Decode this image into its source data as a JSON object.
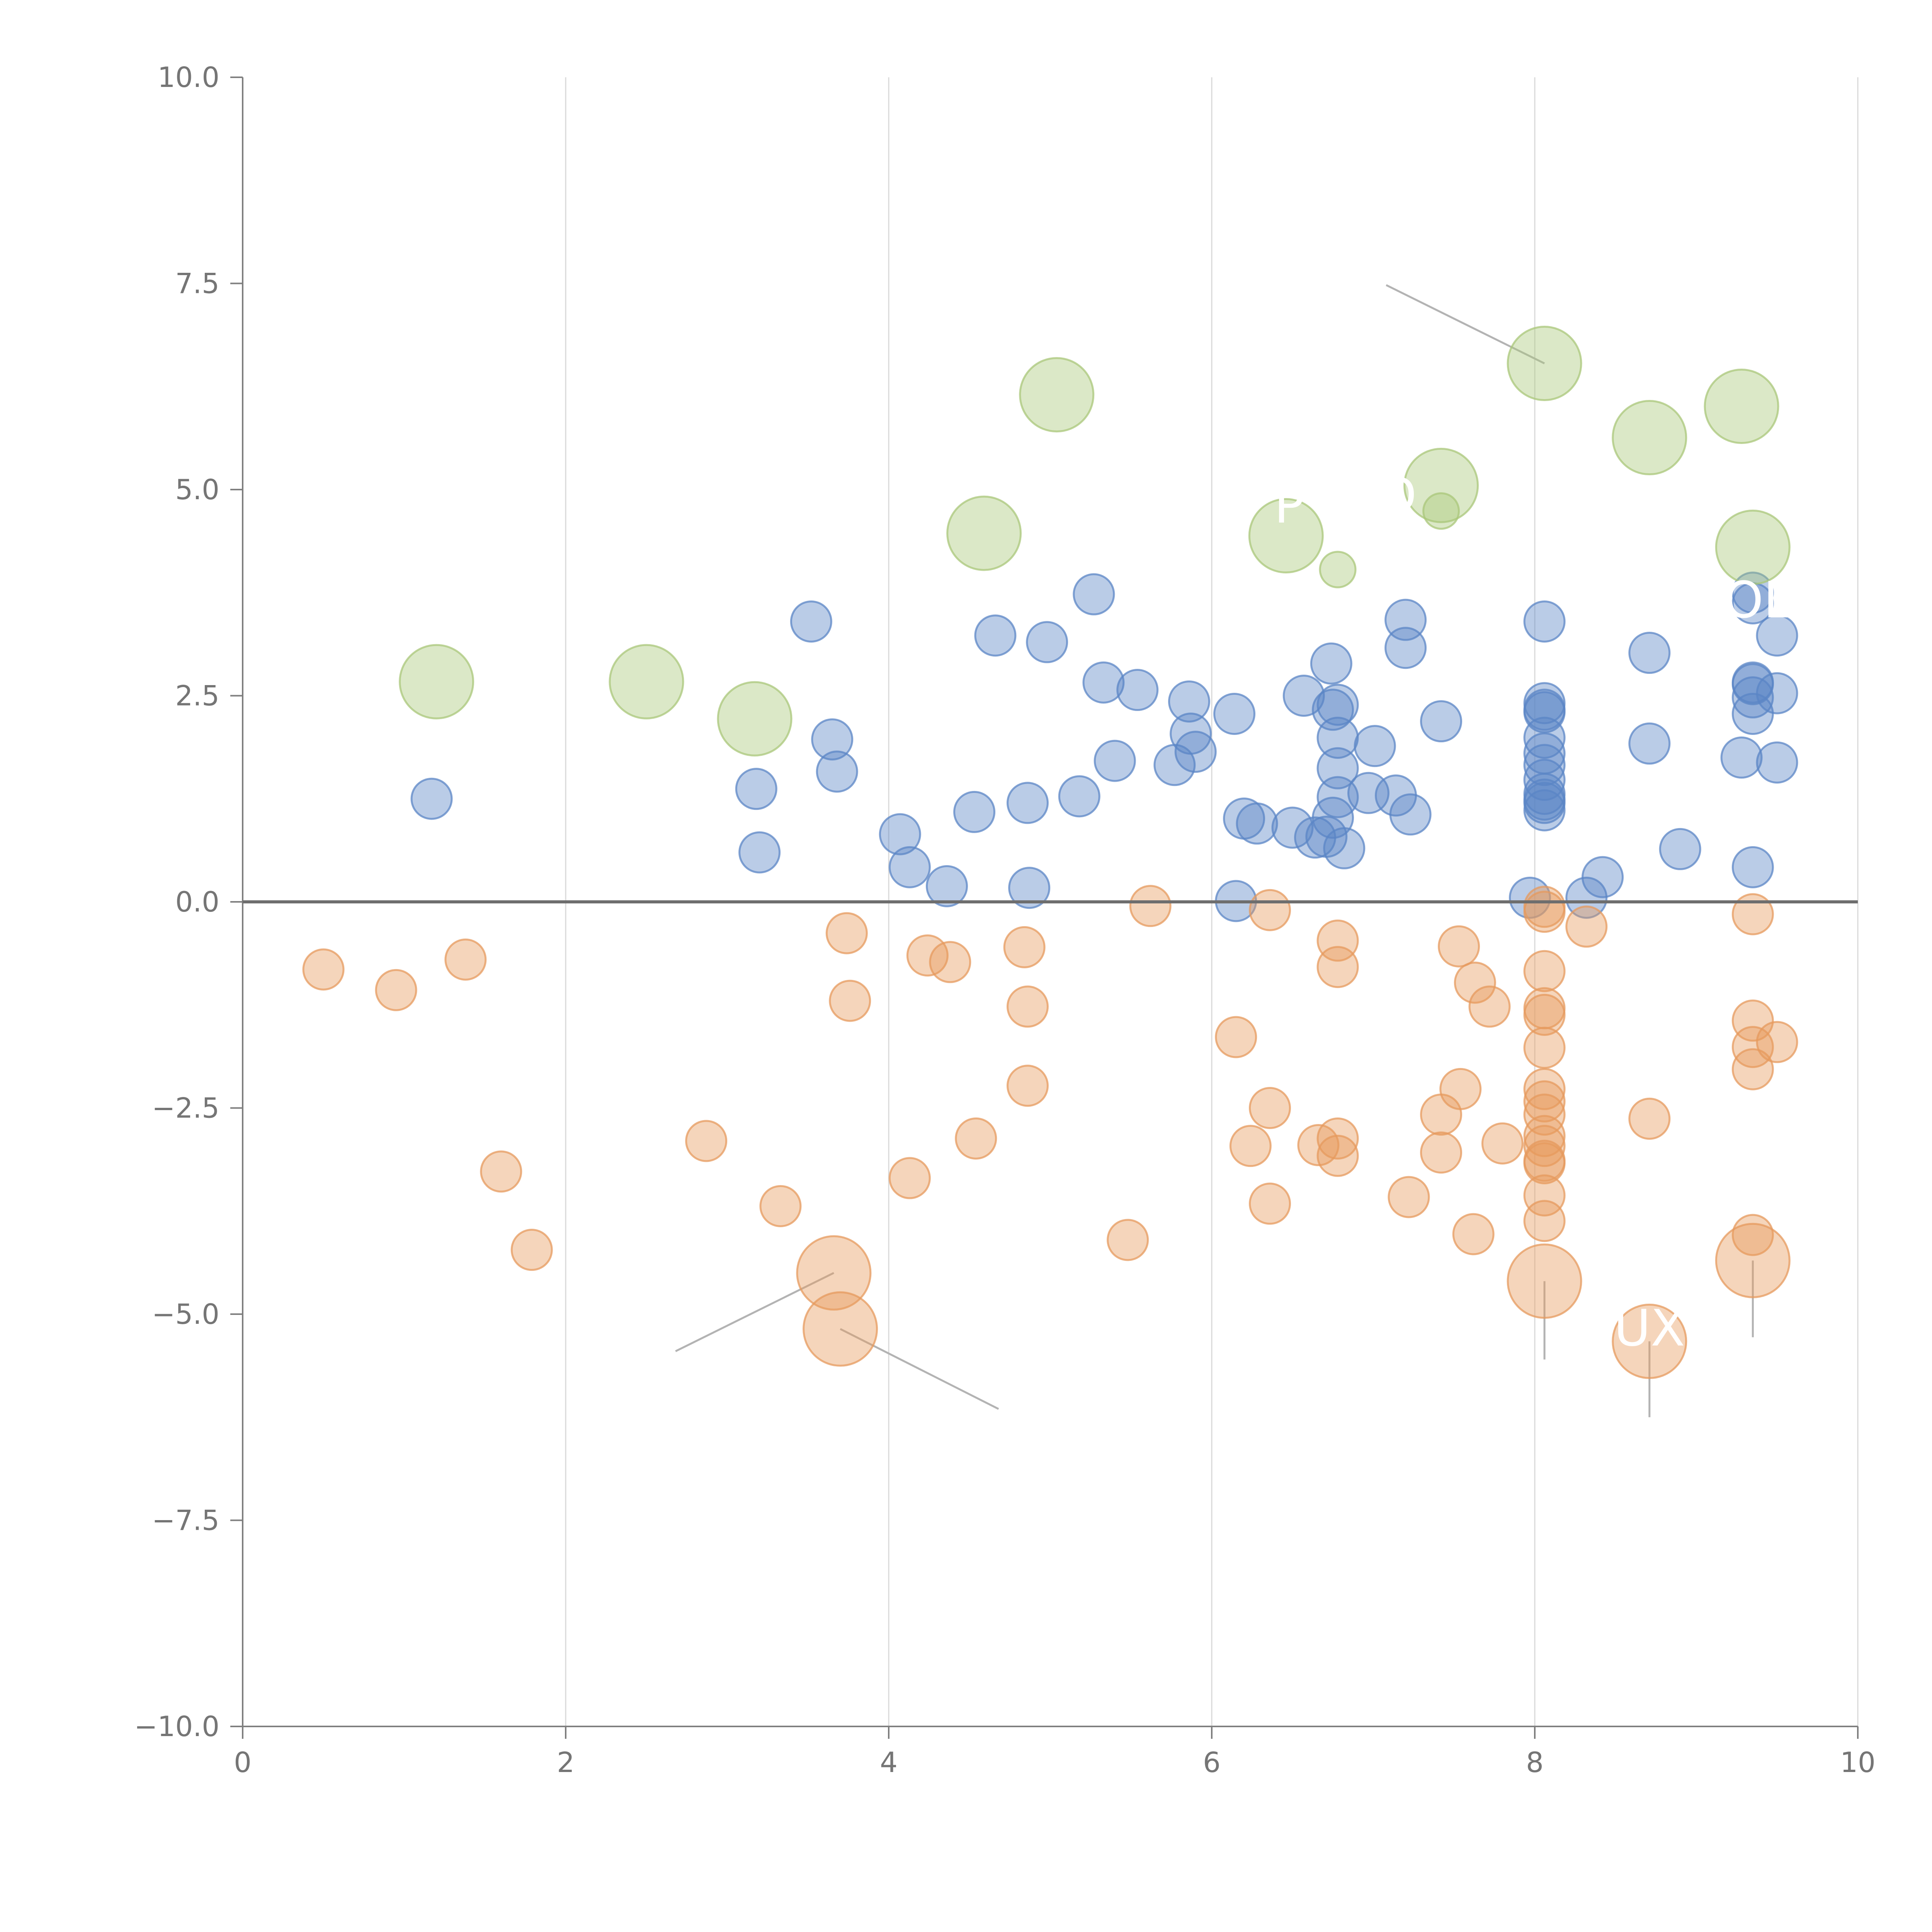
{
  "chart_data": {
    "type": "scatter",
    "title": "",
    "xlabel": "",
    "ylabel": "",
    "xlim": [
      0,
      10
    ],
    "ylim": [
      -10,
      10
    ],
    "grid": "vertical",
    "legend": "none",
    "x_ticks": [
      "0",
      "2",
      "4",
      "6",
      "8",
      "10"
    ],
    "x_tick_values": [
      0,
      2,
      4,
      6,
      8,
      10
    ],
    "y_ticks": [
      "10.0",
      "7.5",
      "5.0",
      "2.5",
      "0.0",
      "−2.5",
      "−5.0",
      "−7.5",
      "−10.0"
    ],
    "y_tick_values": [
      10,
      7.5,
      5,
      2.5,
      0,
      -2.5,
      -5,
      -7.5,
      -10
    ],
    "baseline": 0,
    "colors": {
      "blue": "#5b86c5",
      "orange": "#e69a5e",
      "green": "#a9c77a",
      "grid": "#d9d9d9",
      "axis": "#7f7f7f",
      "baseline": "#6e6e6e",
      "leader": "#b3b3b3"
    },
    "series": [
      {
        "name": "blue",
        "color": "#5b86c5",
        "size": 1,
        "points": [
          [
            1.17,
            1.25
          ],
          [
            3.18,
            1.37
          ],
          [
            3.2,
            0.6
          ],
          [
            3.52,
            3.4
          ],
          [
            3.65,
            1.97
          ],
          [
            3.68,
            1.58
          ],
          [
            4.07,
            0.82
          ],
          [
            4.13,
            0.42
          ],
          [
            4.36,
            0.19
          ],
          [
            4.53,
            1.09
          ],
          [
            4.66,
            3.23
          ],
          [
            4.86,
            1.2
          ],
          [
            4.87,
            0.17
          ],
          [
            4.98,
            3.15
          ],
          [
            5.18,
            1.28
          ],
          [
            5.27,
            3.73
          ],
          [
            5.33,
            2.66
          ],
          [
            5.4,
            1.71
          ],
          [
            5.54,
            2.57
          ],
          [
            5.77,
            1.66
          ],
          [
            5.86,
            2.43
          ],
          [
            5.87,
            2.04
          ],
          [
            5.9,
            1.82
          ],
          [
            6.14,
            2.28
          ],
          [
            6.15,
            0.01
          ],
          [
            6.2,
            1.01
          ],
          [
            6.28,
            0.95
          ],
          [
            6.5,
            0.9
          ],
          [
            6.57,
            2.5
          ],
          [
            6.64,
            0.78
          ],
          [
            6.71,
            0.79
          ],
          [
            6.74,
            2.89
          ],
          [
            6.75,
            1.02
          ],
          [
            6.75,
            2.33
          ],
          [
            6.78,
            1.99
          ],
          [
            6.78,
            1.62
          ],
          [
            6.78,
            1.27
          ],
          [
            6.78,
            2.39
          ],
          [
            6.82,
            0.65
          ],
          [
            6.97,
            1.32
          ],
          [
            7.01,
            1.89
          ],
          [
            7.14,
            1.29
          ],
          [
            7.2,
            3.42
          ],
          [
            7.2,
            3.08
          ],
          [
            7.23,
            1.06
          ],
          [
            7.42,
            2.19
          ],
          [
            7.97,
            0.05
          ],
          [
            8.06,
            3.4
          ],
          [
            8.06,
            2.41
          ],
          [
            8.06,
            2.3
          ],
          [
            8.06,
            2.33
          ],
          [
            8.06,
            1.99
          ],
          [
            8.06,
            1.8
          ],
          [
            8.06,
            1.66
          ],
          [
            8.06,
            1.48
          ],
          [
            8.06,
            1.31
          ],
          [
            8.06,
            1.24
          ],
          [
            8.06,
            1.2
          ],
          [
            8.06,
            1.11
          ],
          [
            8.32,
            0.05
          ],
          [
            8.42,
            0.3
          ],
          [
            8.71,
            3.02
          ],
          [
            8.71,
            1.92
          ],
          [
            8.9,
            0.64
          ],
          [
            9.28,
            1.75
          ],
          [
            9.35,
            3.75
          ],
          [
            9.35,
            3.62
          ],
          [
            9.35,
            2.66
          ],
          [
            9.35,
            2.64
          ],
          [
            9.35,
            2.48
          ],
          [
            9.35,
            2.28
          ],
          [
            9.35,
            0.42
          ],
          [
            9.5,
            3.23
          ],
          [
            9.5,
            2.53
          ],
          [
            9.5,
            1.69
          ]
        ]
      },
      {
        "name": "orange",
        "color": "#e69a5e",
        "size": 1,
        "points": [
          [
            0.5,
            -0.82
          ],
          [
            0.95,
            -1.07
          ],
          [
            1.38,
            -0.7
          ],
          [
            1.6,
            -3.27
          ],
          [
            1.79,
            -4.22
          ],
          [
            2.87,
            -2.9
          ],
          [
            3.33,
            -3.69
          ],
          [
            3.74,
            -0.38
          ],
          [
            3.76,
            -1.2
          ],
          [
            4.13,
            -3.35
          ],
          [
            4.24,
            -0.65
          ],
          [
            4.38,
            -0.73
          ],
          [
            4.54,
            -2.87
          ],
          [
            4.84,
            -0.55
          ],
          [
            4.86,
            -1.27
          ],
          [
            4.86,
            -2.23
          ],
          [
            5.48,
            -4.1
          ],
          [
            5.62,
            -0.05
          ],
          [
            6.15,
            -1.64
          ],
          [
            6.24,
            -2.96
          ],
          [
            6.36,
            -0.1
          ],
          [
            6.36,
            -2.5
          ],
          [
            6.36,
            -3.66
          ],
          [
            6.66,
            -2.95
          ],
          [
            6.78,
            -0.47
          ],
          [
            6.78,
            -0.79
          ],
          [
            6.78,
            -2.87
          ],
          [
            6.78,
            -3.08
          ],
          [
            7.22,
            -3.58
          ],
          [
            7.42,
            -2.58
          ],
          [
            7.42,
            -3.04
          ],
          [
            7.53,
            -0.54
          ],
          [
            7.54,
            -2.27
          ],
          [
            7.62,
            -4.03
          ],
          [
            7.63,
            -0.98
          ],
          [
            7.72,
            -1.27
          ],
          [
            7.8,
            -2.93
          ],
          [
            8.06,
            -0.06
          ],
          [
            8.06,
            -0.12
          ],
          [
            8.06,
            -0.84
          ],
          [
            8.06,
            -1.29
          ],
          [
            8.06,
            -1.37
          ],
          [
            8.06,
            -1.77
          ],
          [
            8.06,
            -2.27
          ],
          [
            8.06,
            -2.42
          ],
          [
            8.06,
            -2.58
          ],
          [
            8.06,
            -2.84
          ],
          [
            8.06,
            -2.96
          ],
          [
            8.06,
            -3.14
          ],
          [
            8.06,
            -3.17
          ],
          [
            8.06,
            -3.56
          ],
          [
            8.06,
            -3.87
          ],
          [
            8.32,
            -0.3
          ],
          [
            8.71,
            -2.63
          ],
          [
            9.35,
            -0.15
          ],
          [
            9.35,
            -1.44
          ],
          [
            9.35,
            -1.76
          ],
          [
            9.35,
            -2.03
          ],
          [
            9.35,
            -4.04
          ],
          [
            9.5,
            -1.7
          ]
        ]
      },
      {
        "name": "green",
        "color": "#a9c77a",
        "size": 2,
        "points": [
          [
            1.2,
            2.67
          ],
          [
            2.5,
            2.67
          ],
          [
            3.17,
            2.22
          ],
          [
            4.59,
            4.47
          ],
          [
            5.04,
            6.15
          ],
          [
            6.46,
            4.44
          ],
          [
            7.42,
            5.05
          ],
          [
            8.06,
            6.53
          ],
          [
            8.71,
            5.63
          ],
          [
            9.28,
            6.01
          ],
          [
            9.35,
            4.3
          ]
        ],
        "small_points": [
          [
            6.78,
            4.03
          ],
          [
            7.42,
            4.74
          ]
        ]
      },
      {
        "name": "orange-large",
        "color": "#e69a5e",
        "size": 2,
        "points": [
          [
            3.66,
            -4.5
          ],
          [
            3.7,
            -5.18
          ],
          [
            8.06,
            -4.6
          ],
          [
            8.71,
            -5.33
          ],
          [
            9.35,
            -4.35
          ]
        ]
      }
    ],
    "leader_lines": [
      {
        "from": [
          8.06,
          6.53
        ],
        "to": [
          7.08,
          7.48
        ]
      },
      {
        "from": [
          3.66,
          -4.5
        ],
        "to": [
          2.68,
          -5.45
        ]
      },
      {
        "from": [
          3.7,
          -5.18
        ],
        "to": [
          4.68,
          -6.15
        ]
      },
      {
        "from": [
          8.06,
          -4.6
        ],
        "to": [
          8.06,
          -5.55
        ]
      },
      {
        "from": [
          8.71,
          -5.33
        ],
        "to": [
          8.71,
          -6.25
        ]
      },
      {
        "from": [
          9.35,
          -4.35
        ],
        "to": [
          9.35,
          -5.28
        ]
      }
    ],
    "annotations": [
      {
        "text": "P",
        "x": 6.48,
        "y": 4.6
      },
      {
        "text": "D",
        "x": 7.15,
        "y": 4.72
      },
      {
        "text": "UX",
        "x": 8.71,
        "y": -5.38
      },
      {
        "text": "OL",
        "x": 9.38,
        "y": 3.45
      }
    ]
  }
}
